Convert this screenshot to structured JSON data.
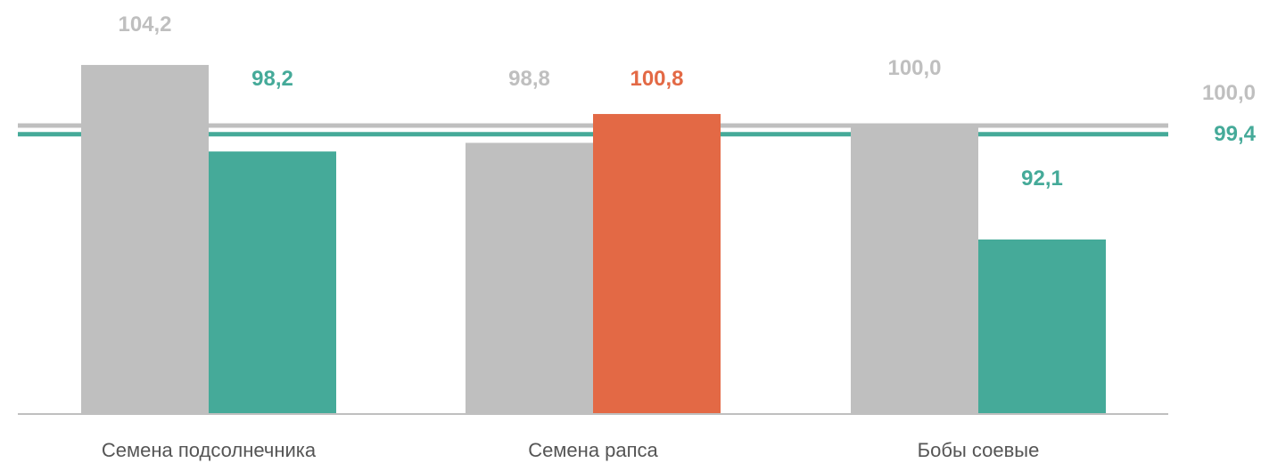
{
  "chart_data": {
    "type": "bar",
    "categories": [
      "Семена подсолнечника",
      "Семена рапса",
      "Бобы соевые"
    ],
    "series": [
      {
        "values": [
          104.2,
          98.8,
          100.0
        ],
        "labels": [
          "104,2",
          "98,8",
          "100,0"
        ],
        "color": "#bfbfbf",
        "label_color": "#bfbfbf"
      },
      {
        "values": [
          98.2,
          100.8,
          92.1
        ],
        "labels": [
          "98,2",
          "100,8",
          "92,1"
        ],
        "colors": [
          "#45aa99",
          "#e36945",
          "#45aa99"
        ],
        "label_colors": [
          "#45aa99",
          "#e36945",
          "#45aa99"
        ]
      }
    ],
    "reference_lines": [
      {
        "value": 100.0,
        "label": "100,0",
        "color": "#bfbfbf"
      },
      {
        "value": 99.4,
        "label": "99,4",
        "color": "#45aa99"
      }
    ],
    "ylim": [
      80,
      105
    ],
    "grid": false,
    "legend": "none"
  }
}
